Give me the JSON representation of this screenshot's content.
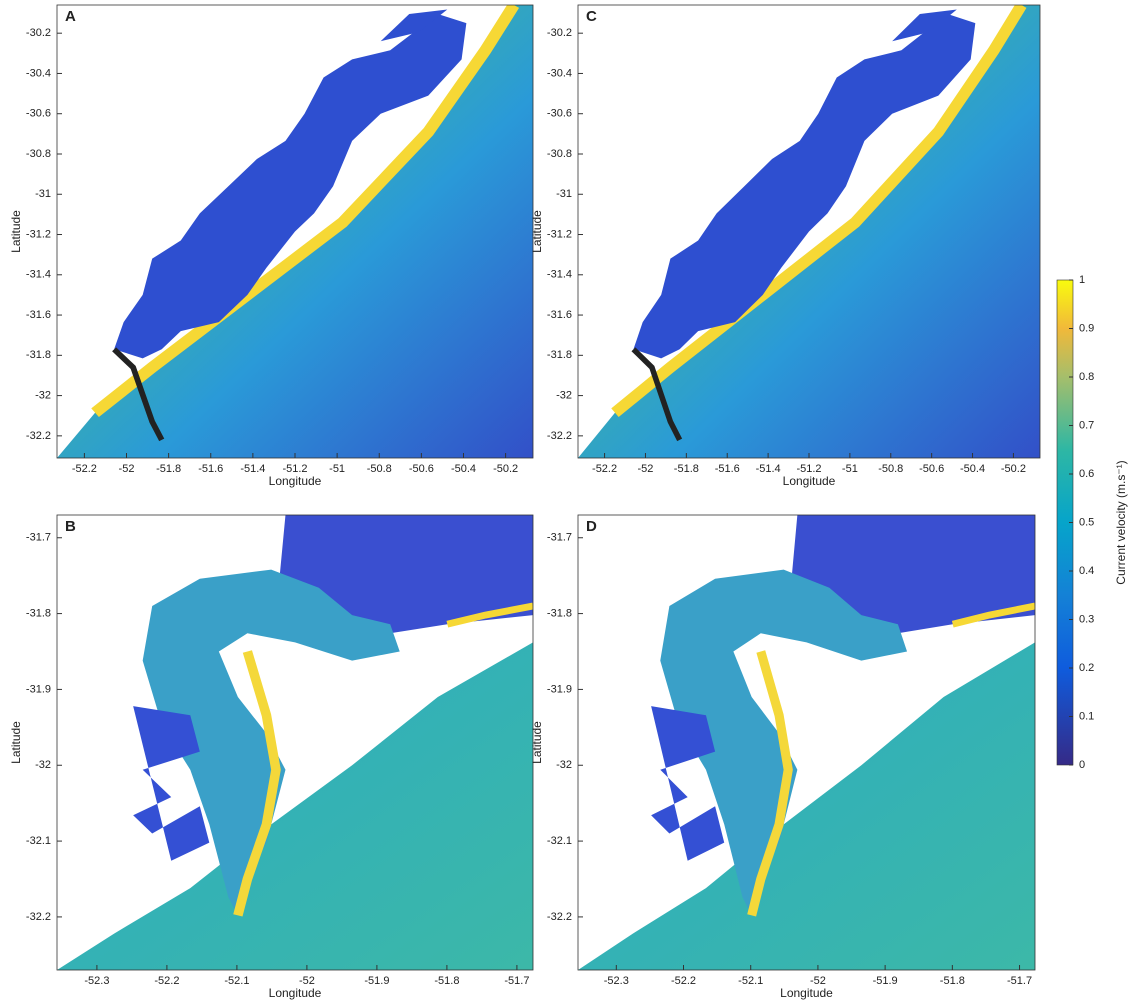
{
  "chart_data": [
    {
      "type": "map",
      "label": "A",
      "xlabel": "Longitude",
      "ylabel": "Latitude",
      "xlim": [
        -52.33,
        -50.07
      ],
      "ylim": [
        -32.31,
        -30.06
      ],
      "xticks": [
        -52.2,
        -52,
        -51.8,
        -51.6,
        -51.4,
        -51.2,
        -51,
        -50.8,
        -50.6,
        -50.4,
        -50.2
      ],
      "yticks": [
        -30.2,
        -30.4,
        -30.6,
        -30.8,
        -31,
        -31.2,
        -31.4,
        -31.6,
        -31.8,
        -32,
        -32.2
      ]
    },
    {
      "type": "map",
      "label": "B",
      "xlabel": "Longitude",
      "ylabel": "Latitude",
      "xlim": [
        -52.357,
        -51.677
      ],
      "ylim": [
        -32.27,
        -31.67
      ],
      "xticks": [
        -52.3,
        -52.2,
        -52.1,
        -52,
        -51.9,
        -51.8,
        -51.7
      ],
      "yticks": [
        -31.7,
        -31.8,
        -31.9,
        -32,
        -32.1,
        -32.2
      ]
    },
    {
      "type": "map",
      "label": "C",
      "xlabel": "Longitude",
      "ylabel": "Latitude",
      "xlim": [
        -52.33,
        -50.07
      ],
      "ylim": [
        -32.31,
        -30.06
      ],
      "xticks": [
        -52.2,
        -52,
        -51.8,
        -51.6,
        -51.4,
        -51.2,
        -51,
        -50.8,
        -50.6,
        -50.4,
        -50.2
      ],
      "yticks": [
        -30.2,
        -30.4,
        -30.6,
        -30.8,
        -31,
        -31.2,
        -31.4,
        -31.6,
        -31.8,
        -32,
        -32.2
      ]
    },
    {
      "type": "map",
      "label": "D",
      "xlabel": "Longitude",
      "ylabel": "Latitude",
      "xlim": [
        -52.357,
        -51.677
      ],
      "ylim": [
        -32.27,
        -31.67
      ],
      "xticks": [
        -52.3,
        -52.2,
        -52.1,
        -52,
        -51.9,
        -51.8,
        -51.7
      ],
      "yticks": [
        -31.7,
        -31.8,
        -31.9,
        -32,
        -32.1,
        -32.2
      ]
    }
  ],
  "colorbar": {
    "label": "Current velocity (m.s⁻¹)",
    "lim": [
      0,
      1
    ],
    "ticks": [
      0,
      0.1,
      0.2,
      0.3,
      0.4,
      0.5,
      0.6,
      0.7,
      0.8,
      0.9,
      1
    ]
  }
}
